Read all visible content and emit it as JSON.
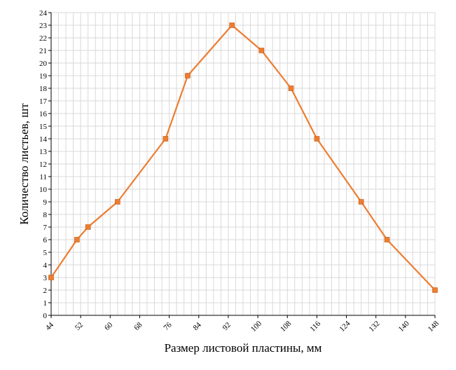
{
  "chart_data": {
    "type": "line",
    "xlabel": "Размер листовой пластины, мм",
    "ylabel": "Количество листьев, шт",
    "xlim": [
      44,
      148
    ],
    "ylim": [
      0,
      24
    ],
    "x_ticks": [
      44,
      52,
      60,
      68,
      76,
      84,
      92,
      100,
      108,
      116,
      124,
      132,
      140,
      148
    ],
    "y_ticks": [
      0,
      1,
      2,
      3,
      4,
      5,
      6,
      7,
      8,
      9,
      10,
      11,
      12,
      13,
      14,
      15,
      16,
      17,
      18,
      19,
      20,
      21,
      22,
      23,
      24
    ],
    "grid": true,
    "series": [
      {
        "color": "#ed7d31",
        "points": [
          {
            "x": 44,
            "y": 3
          },
          {
            "x": 51,
            "y": 6
          },
          {
            "x": 54,
            "y": 7
          },
          {
            "x": 62,
            "y": 9
          },
          {
            "x": 75,
            "y": 14
          },
          {
            "x": 81,
            "y": 19
          },
          {
            "x": 93,
            "y": 23
          },
          {
            "x": 101,
            "y": 21
          },
          {
            "x": 109,
            "y": 18
          },
          {
            "x": 116,
            "y": 14
          },
          {
            "x": 128,
            "y": 9
          },
          {
            "x": 135,
            "y": 6
          },
          {
            "x": 148,
            "y": 2
          }
        ]
      }
    ]
  }
}
